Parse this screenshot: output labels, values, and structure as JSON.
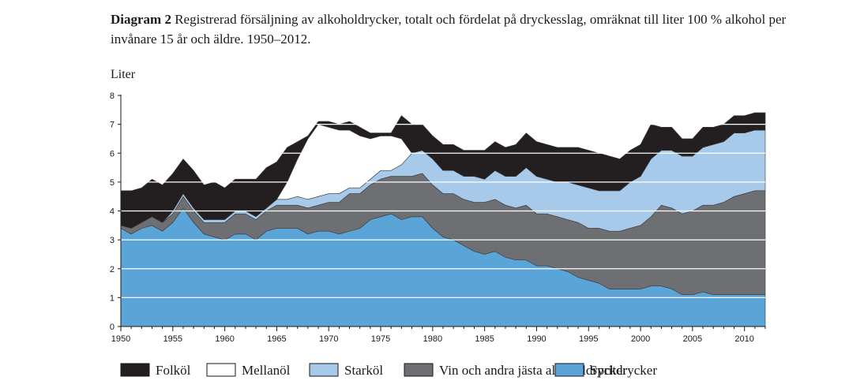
{
  "title": {
    "prefix": "Diagram 2",
    "text": "Registrerad försäljning av alkoholdrycker, totalt och fördelat på dryckesslag, omräknat till liter 100 % alkohol per invånare 15 år och äldre. 1950–2012."
  },
  "chart_data": {
    "type": "area",
    "stacked": true,
    "ylabel": "Liter",
    "ylim": [
      0,
      8
    ],
    "yticks": [
      0,
      1,
      2,
      3,
      4,
      5,
      6,
      7,
      8
    ],
    "xlim": [
      1950,
      2012
    ],
    "xticks": [
      1950,
      1955,
      1960,
      1965,
      1970,
      1975,
      1980,
      1985,
      1990,
      1995,
      2000,
      2005,
      2010
    ],
    "grid": "horizontal",
    "legend_position": "bottom",
    "x": [
      1950,
      1951,
      1952,
      1953,
      1954,
      1955,
      1956,
      1957,
      1958,
      1959,
      1960,
      1961,
      1962,
      1963,
      1964,
      1965,
      1966,
      1967,
      1968,
      1969,
      1970,
      1971,
      1972,
      1973,
      1974,
      1975,
      1976,
      1977,
      1978,
      1979,
      1980,
      1981,
      1982,
      1983,
      1984,
      1985,
      1986,
      1987,
      1988,
      1989,
      1990,
      1991,
      1992,
      1993,
      1994,
      1995,
      1996,
      1997,
      1998,
      1999,
      2000,
      2001,
      2002,
      2003,
      2004,
      2005,
      2006,
      2007,
      2008,
      2009,
      2010,
      2011,
      2012
    ],
    "series": [
      {
        "name": "Spritdrycker",
        "color": "#5aa4d8",
        "values": [
          3.4,
          3.2,
          3.4,
          3.5,
          3.3,
          3.6,
          4.1,
          3.6,
          3.2,
          3.1,
          3.0,
          3.2,
          3.2,
          3.0,
          3.3,
          3.4,
          3.4,
          3.4,
          3.2,
          3.3,
          3.3,
          3.2,
          3.3,
          3.4,
          3.7,
          3.8,
          3.9,
          3.7,
          3.8,
          3.8,
          3.4,
          3.1,
          3.0,
          2.8,
          2.6,
          2.5,
          2.6,
          2.4,
          2.3,
          2.3,
          2.1,
          2.1,
          2.0,
          1.9,
          1.7,
          1.6,
          1.5,
          1.3,
          1.3,
          1.3,
          1.3,
          1.4,
          1.4,
          1.3,
          1.1,
          1.1,
          1.2,
          1.1,
          1.1,
          1.1,
          1.1,
          1.1,
          1.1
        ]
      },
      {
        "name": "Vin  och andra jästa alkoholdrycker",
        "color": "#6e6f73",
        "values": [
          0.1,
          0.2,
          0.2,
          0.3,
          0.3,
          0.3,
          0.4,
          0.4,
          0.4,
          0.5,
          0.6,
          0.7,
          0.7,
          0.7,
          0.7,
          0.8,
          0.8,
          0.8,
          0.9,
          0.9,
          1.0,
          1.1,
          1.3,
          1.2,
          1.2,
          1.3,
          1.3,
          1.5,
          1.4,
          1.5,
          1.5,
          1.5,
          1.6,
          1.6,
          1.7,
          1.8,
          1.8,
          1.8,
          1.8,
          1.9,
          1.8,
          1.8,
          1.8,
          1.8,
          1.9,
          1.8,
          1.9,
          2.0,
          2.0,
          2.1,
          2.2,
          2.4,
          2.8,
          2.8,
          2.8,
          2.9,
          3.0,
          3.1,
          3.2,
          3.4,
          3.5,
          3.6,
          3.6
        ]
      },
      {
        "name": "Starköl",
        "color": "#a7c9ea",
        "values": [
          0,
          0,
          0,
          0,
          0,
          0.1,
          0.1,
          0.1,
          0.1,
          0.1,
          0.1,
          0.1,
          0.1,
          0.1,
          0.1,
          0.2,
          0.2,
          0.3,
          0.3,
          0.3,
          0.3,
          0.3,
          0.2,
          0.2,
          0.2,
          0.3,
          0.2,
          0.4,
          0.8,
          0.8,
          0.9,
          0.8,
          0.8,
          0.8,
          0.9,
          0.8,
          1.0,
          1.0,
          1.1,
          1.3,
          1.3,
          1.2,
          1.2,
          1.3,
          1.3,
          1.4,
          1.3,
          1.4,
          1.4,
          1.6,
          1.7,
          2.0,
          1.9,
          2.0,
          2.0,
          1.9,
          2.0,
          2.1,
          2.1,
          2.2,
          2.1,
          2.1,
          2.1
        ]
      },
      {
        "name": "Mellanöl",
        "color": "#ffffff",
        "values": [
          0,
          0,
          0,
          0,
          0,
          0,
          0,
          0,
          0,
          0,
          0,
          0,
          0,
          0,
          0,
          0,
          0.6,
          1.3,
          2.1,
          2.5,
          2.3,
          2.2,
          2.0,
          1.8,
          1.4,
          1.2,
          1.2,
          0.9,
          0,
          0,
          0,
          0,
          0,
          0,
          0,
          0,
          0,
          0,
          0,
          0,
          0,
          0,
          0,
          0,
          0,
          0,
          0,
          0,
          0,
          0,
          0,
          0,
          0,
          0,
          0,
          0,
          0,
          0,
          0,
          0,
          0,
          0,
          0
        ]
      },
      {
        "name": "Folköl",
        "color": "#231f20",
        "values": [
          1.2,
          1.3,
          1.2,
          1.3,
          1.3,
          1.3,
          1.2,
          1.3,
          1.2,
          1.3,
          1.1,
          1.1,
          1.1,
          1.3,
          1.4,
          1.3,
          1.2,
          0.6,
          0.1,
          0.1,
          0.2,
          0.2,
          0.3,
          0.3,
          0.2,
          0.1,
          0.1,
          0.8,
          1.0,
          0.9,
          0.8,
          0.9,
          0.9,
          0.9,
          0.9,
          1.0,
          1.0,
          1.0,
          1.1,
          1.2,
          1.2,
          1.2,
          1.2,
          1.2,
          1.3,
          1.3,
          1.3,
          1.2,
          1.1,
          1.1,
          1.1,
          1.2,
          0.8,
          0.8,
          0.6,
          0.6,
          0.7,
          0.6,
          0.6,
          0.6,
          0.6,
          0.6,
          0.6
        ]
      }
    ],
    "legend_order": [
      "Folköl",
      "Mellanöl",
      "Starköl",
      "Vin  och andra jästa alkoholdrycker",
      "Spritdrycker"
    ]
  }
}
